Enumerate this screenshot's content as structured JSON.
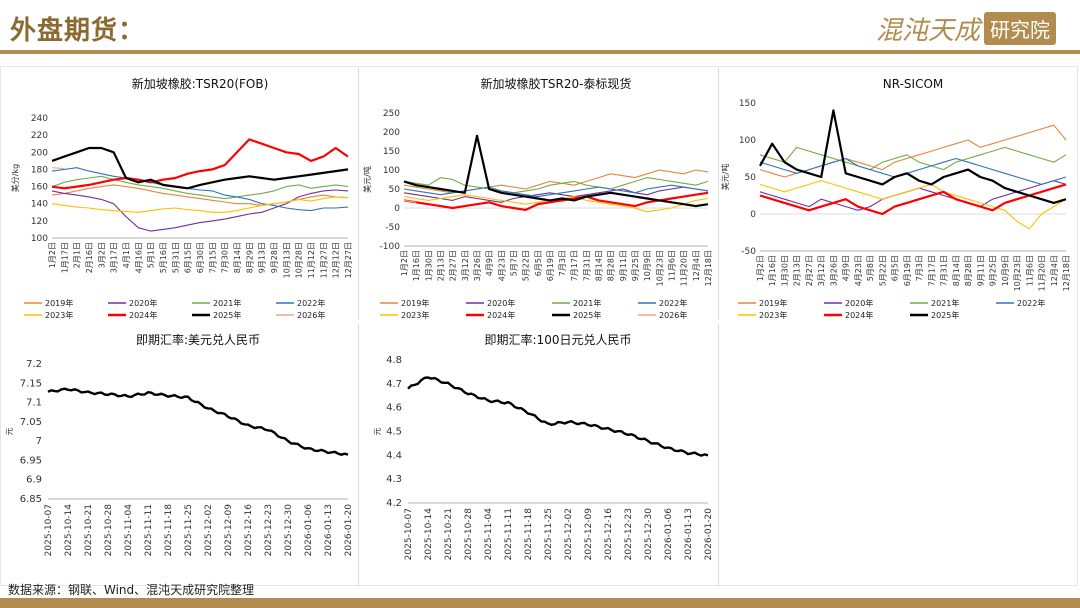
{
  "header": {
    "title": "外盘期货：",
    "brand_main": "混沌天成",
    "brand_tag": "研究院"
  },
  "source": "数据来源：钢联、Wind、混沌天成研究院整理",
  "colors": {
    "2019年": "#e8843f",
    "2020年": "#7030a0",
    "2021年": "#70ad47",
    "2022年": "#2e75b6",
    "2023年": "#ffc000",
    "2024年": "#ff0000",
    "2025年": "#000000",
    "2026年": "#f4a582"
  },
  "chart_data": [
    {
      "id": "tsr20-fob",
      "type": "line",
      "title": "新加坡橡胶:TSR20(FOB)",
      "ylabel": "美分/kg",
      "ylim": [
        100,
        240
      ],
      "yticks": [
        100,
        120,
        140,
        160,
        180,
        200,
        220,
        240
      ],
      "xticks": [
        "1月2日",
        "1月17日",
        "2月1日",
        "2月16日",
        "3月2日",
        "3月17日",
        "4月1日",
        "4月16日",
        "5月1日",
        "5月16日",
        "5月31日",
        "6月15日",
        "6月30日",
        "7月15日",
        "7月30日",
        "8月14日",
        "8月29日",
        "9月13日",
        "9月28日",
        "10月13日",
        "10月28日",
        "11月12日",
        "11月27日",
        "12月12日",
        "12月27日"
      ],
      "series": [
        {
          "name": "2019年",
          "values": [
            150,
            152,
            155,
            158,
            160,
            162,
            160,
            158,
            155,
            152,
            150,
            148,
            146,
            144,
            142,
            140,
            140,
            138,
            140,
            142,
            145,
            148,
            150,
            148,
            147
          ]
        },
        {
          "name": "2020年",
          "values": [
            155,
            152,
            150,
            148,
            145,
            140,
            125,
            112,
            108,
            110,
            112,
            115,
            118,
            120,
            122,
            125,
            128,
            130,
            135,
            140,
            148,
            152,
            155,
            156,
            155
          ]
        },
        {
          "name": "2021年",
          "values": [
            160,
            165,
            168,
            170,
            172,
            168,
            165,
            162,
            160,
            158,
            155,
            152,
            150,
            148,
            146,
            148,
            150,
            152,
            155,
            160,
            162,
            158,
            160,
            162,
            160
          ]
        },
        {
          "name": "2022年",
          "values": [
            178,
            180,
            182,
            178,
            175,
            172,
            170,
            168,
            165,
            162,
            160,
            158,
            156,
            155,
            150,
            148,
            145,
            140,
            138,
            135,
            133,
            132,
            135,
            135,
            136
          ]
        },
        {
          "name": "2023年",
          "values": [
            140,
            138,
            136,
            135,
            133,
            132,
            131,
            130,
            132,
            134,
            135,
            133,
            132,
            130,
            130,
            132,
            135,
            138,
            140,
            142,
            145,
            143,
            146,
            148,
            147
          ]
        },
        {
          "name": "2024年",
          "values": [
            160,
            158,
            160,
            162,
            165,
            168,
            170,
            168,
            165,
            168,
            170,
            175,
            178,
            180,
            185,
            200,
            215,
            210,
            205,
            200,
            198,
            190,
            195,
            205,
            195
          ]
        },
        {
          "name": "2025年",
          "values": [
            190,
            195,
            200,
            205,
            205,
            200,
            170,
            165,
            168,
            162,
            160,
            158,
            162,
            165,
            168,
            170,
            172,
            170,
            168,
            170,
            172,
            174,
            176,
            178,
            180
          ]
        },
        {
          "name": "2026年",
          "values": [
            182,
            181,
            null,
            null,
            null,
            null,
            null,
            null,
            null,
            null,
            null,
            null,
            null,
            null,
            null,
            null,
            null,
            null,
            null,
            null,
            null,
            null,
            null,
            null,
            null
          ]
        }
      ],
      "legend": [
        "2019年",
        "2020年",
        "2021年",
        "2022年",
        "2023年",
        "2024年",
        "2025年",
        "2026年"
      ]
    },
    {
      "id": "tsr20-thai-basis",
      "type": "line",
      "title": "新加坡橡胶TSR20-泰标现货",
      "ylabel": "美元/吨",
      "ylim": [
        -100,
        250
      ],
      "yticks": [
        -100,
        -50,
        0,
        50,
        100,
        150,
        200,
        250
      ],
      "xticks": [
        "1月2日",
        "1月16日",
        "1月30日",
        "2月13日",
        "2月27日",
        "3月12日",
        "3月26日",
        "4月9日",
        "4月23日",
        "5月7日",
        "5月22日",
        "6月5日",
        "6月19日",
        "7月3日",
        "7月17日",
        "7月31日",
        "8月14日",
        "8月28日",
        "9月11日",
        "9月25日",
        "10月9日",
        "10月23日",
        "11月6日",
        "11月20日",
        "12月4日",
        "12月18日"
      ],
      "series": [
        {
          "name": "2019年",
          "values": [
            60,
            55,
            50,
            45,
            40,
            45,
            50,
            55,
            60,
            55,
            50,
            60,
            70,
            65,
            60,
            70,
            80,
            90,
            85,
            80,
            90,
            100,
            95,
            90,
            100,
            95
          ]
        },
        {
          "name": "2020年",
          "values": [
            40,
            35,
            30,
            25,
            20,
            30,
            25,
            20,
            15,
            25,
            30,
            35,
            40,
            35,
            30,
            35,
            40,
            45,
            50,
            40,
            35,
            45,
            50,
            55,
            50,
            45
          ]
        },
        {
          "name": "2021年",
          "values": [
            70,
            65,
            60,
            80,
            75,
            60,
            55,
            50,
            45,
            40,
            45,
            50,
            60,
            65,
            70,
            60,
            55,
            50,
            60,
            70,
            80,
            75,
            70,
            65,
            60,
            70
          ]
        },
        {
          "name": "2022年",
          "values": [
            50,
            45,
            40,
            35,
            40,
            45,
            50,
            55,
            45,
            40,
            35,
            30,
            35,
            40,
            45,
            50,
            55,
            50,
            45,
            40,
            50,
            55,
            60,
            55,
            50,
            45
          ]
        },
        {
          "name": "2023年",
          "values": [
            30,
            25,
            20,
            25,
            30,
            35,
            30,
            25,
            20,
            15,
            10,
            15,
            20,
            25,
            30,
            20,
            15,
            10,
            5,
            0,
            -10,
            -5,
            0,
            10,
            20,
            25
          ]
        },
        {
          "name": "2024年",
          "values": [
            20,
            15,
            10,
            5,
            0,
            5,
            10,
            15,
            5,
            0,
            -5,
            10,
            15,
            20,
            25,
            30,
            20,
            15,
            10,
            5,
            15,
            20,
            25,
            30,
            35,
            40
          ]
        },
        {
          "name": "2025年",
          "values": [
            70,
            60,
            55,
            50,
            45,
            40,
            190,
            50,
            40,
            35,
            30,
            25,
            20,
            25,
            20,
            30,
            35,
            40,
            35,
            30,
            25,
            20,
            15,
            10,
            5,
            10
          ]
        },
        {
          "name": "2026年",
          "values": [
            20,
            15,
            null,
            null,
            null,
            null,
            null,
            null,
            null,
            null,
            null,
            null,
            null,
            null,
            null,
            null,
            null,
            null,
            null,
            null,
            null,
            null,
            null,
            null,
            null,
            null
          ]
        }
      ],
      "legend": [
        "2019年",
        "2020年",
        "2021年",
        "2022年",
        "2023年",
        "2024年",
        "2025年",
        "2026年"
      ]
    },
    {
      "id": "nr-sicom",
      "type": "line",
      "title": "NR-SICOM",
      "ylabel": "美元/吨",
      "ylim": [
        -50,
        150
      ],
      "yticks": [
        -50,
        0,
        50,
        100,
        150
      ],
      "xticks": [
        "1月2日",
        "1月16日",
        "1月30日",
        "2月13日",
        "2月27日",
        "3月12日",
        "3月26日",
        "4月9日",
        "4月23日",
        "5月8日",
        "5月22日",
        "6月5日",
        "6月19日",
        "7月3日",
        "7月17日",
        "7月31日",
        "8月14日",
        "8月28日",
        "9月11日",
        "9月25日",
        "10月9日",
        "10月23日",
        "11月6日",
        "11月20日",
        "12月4日",
        "12月18日"
      ],
      "series": [
        {
          "name": "2019年",
          "values": [
            60,
            55,
            50,
            55,
            60,
            65,
            70,
            75,
            70,
            65,
            60,
            70,
            75,
            80,
            85,
            90,
            95,
            100,
            90,
            95,
            100,
            105,
            110,
            115,
            120,
            100
          ]
        },
        {
          "name": "2020年",
          "values": [
            30,
            25,
            20,
            15,
            10,
            20,
            15,
            10,
            5,
            10,
            20,
            25,
            30,
            35,
            30,
            25,
            20,
            15,
            10,
            20,
            25,
            30,
            35,
            40,
            45,
            40
          ]
        },
        {
          "name": "2021年",
          "values": [
            80,
            75,
            70,
            90,
            85,
            80,
            75,
            70,
            65,
            60,
            70,
            75,
            80,
            70,
            65,
            60,
            70,
            75,
            80,
            85,
            90,
            85,
            80,
            75,
            70,
            80
          ]
        },
        {
          "name": "2022年",
          "values": [
            70,
            65,
            60,
            55,
            60,
            65,
            70,
            75,
            65,
            60,
            55,
            50,
            55,
            60,
            65,
            70,
            75,
            70,
            65,
            60,
            55,
            50,
            45,
            40,
            45,
            50
          ]
        },
        {
          "name": "2023年",
          "values": [
            40,
            35,
            30,
            35,
            40,
            45,
            40,
            35,
            30,
            25,
            20,
            25,
            30,
            35,
            40,
            30,
            25,
            20,
            15,
            10,
            5,
            -10,
            -20,
            0,
            10,
            20
          ]
        },
        {
          "name": "2024年",
          "values": [
            25,
            20,
            15,
            10,
            5,
            10,
            15,
            20,
            10,
            5,
            0,
            10,
            15,
            20,
            25,
            30,
            20,
            15,
            10,
            5,
            15,
            20,
            25,
            30,
            35,
            40
          ]
        },
        {
          "name": "2025年",
          "values": [
            65,
            95,
            70,
            60,
            55,
            50,
            140,
            55,
            50,
            45,
            40,
            50,
            55,
            45,
            40,
            50,
            55,
            60,
            50,
            45,
            35,
            30,
            25,
            20,
            15,
            20
          ]
        }
      ],
      "legend": [
        "2019年",
        "2020年",
        "2021年",
        "2022年",
        "2023年",
        "2024年",
        "2025年"
      ]
    },
    {
      "id": "usdcny",
      "type": "line",
      "title": "即期汇率:美元兑人民币",
      "ylabel": "元",
      "ylim": [
        6.85,
        7.2
      ],
      "yticks": [
        6.85,
        6.9,
        6.95,
        7,
        7.05,
        7.1,
        7.15,
        7.2
      ],
      "x": [
        "2025-10-07",
        "2025-10-14",
        "2025-10-21",
        "2025-10-28",
        "2025-11-04",
        "2025-11-11",
        "2025-11-18",
        "2025-11-25",
        "2025-12-02",
        "2025-12-09",
        "2025-12-16",
        "2025-12-23",
        "2025-12-30",
        "2026-01-06",
        "2026-01-13",
        "2026-01-20"
      ],
      "values": [
        7.128,
        7.135,
        7.126,
        7.122,
        7.116,
        7.125,
        7.118,
        7.113,
        7.085,
        7.065,
        7.04,
        7.03,
        7.0,
        6.98,
        6.972,
        6.965
      ]
    },
    {
      "id": "jpycny",
      "type": "line",
      "title": "即期汇率:100日元兑人民币",
      "ylabel": "元",
      "ylim": [
        4.2,
        4.8
      ],
      "yticks": [
        4.2,
        4.3,
        4.4,
        4.5,
        4.6,
        4.7,
        4.8
      ],
      "x": [
        "2025-10-07",
        "2025-10-14",
        "2025-10-21",
        "2025-10-28",
        "2025-11-04",
        "2025-11-11",
        "2025-11-18",
        "2025-11-25",
        "2025-12-02",
        "2025-12-09",
        "2025-12-16",
        "2025-12-23",
        "2025-12-30",
        "2026-01-06",
        "2026-01-13",
        "2026-01-20"
      ],
      "values": [
        4.68,
        4.73,
        4.7,
        4.66,
        4.63,
        4.62,
        4.58,
        4.53,
        4.54,
        4.53,
        4.51,
        4.49,
        4.46,
        4.43,
        4.41,
        4.4
      ]
    }
  ]
}
